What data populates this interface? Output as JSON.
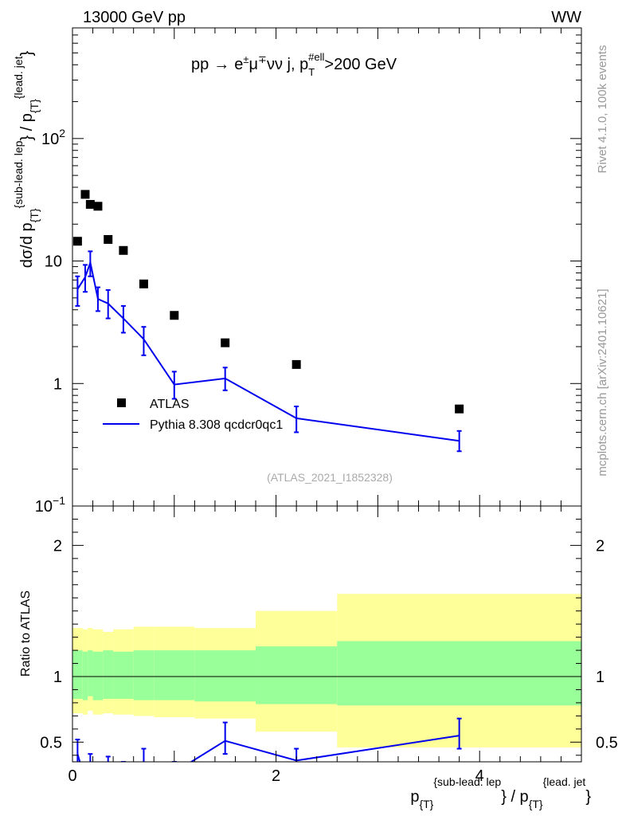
{
  "header": {
    "left": "13000 GeV pp",
    "right": "WW"
  },
  "side": {
    "rivet": "Rivet 4.1.0,  100k events",
    "mcplots": "mcplots.cern.ch [arXiv:2401.10621]"
  },
  "chart_data": [
    {
      "type": "scatter",
      "panel": "main",
      "title": "pp → e±μ∓νν j, p_T^#ell>200 GeV",
      "title_parts": {
        "a": "pp",
        "arrow": "→",
        "b": "e",
        "b1": "±",
        "c": "μ",
        "c1": "∓",
        "d": "νν j, p",
        "sub": "T",
        "sup": "#ell",
        "e": ">200 GeV"
      },
      "ylabel": "dσ/d p_{T}^{sub-lead. lep} / p_{T}^{lead. jet}",
      "ylabel_parts": {
        "a": "dσ/d p",
        "s1": "{T}",
        "p1": "{sub-lead. lep",
        "b": "} / p",
        "s2": "{T}",
        "p2": "{lead. jet",
        "c": "}"
      },
      "yscale": "log",
      "ylim": [
        0.1,
        800
      ],
      "xlim": [
        0,
        5
      ],
      "y_ticklabels": [
        {
          "value": 0.1,
          "base": "10",
          "exp": "−1"
        },
        {
          "value": 1,
          "base": "1",
          "exp": ""
        },
        {
          "value": 10,
          "base": "10",
          "exp": ""
        },
        {
          "value": 100,
          "base": "10",
          "exp": "2"
        }
      ],
      "watermark": "(ATLAS_2021_I1852328)",
      "legend_position": "lower-left",
      "series": [
        {
          "name": "ATLAS",
          "style": "markers",
          "color": "#000000",
          "x": [
            0.05,
            0.125,
            0.175,
            0.25,
            0.35,
            0.5,
            0.7,
            1.0,
            1.5,
            2.2,
            3.8
          ],
          "y": [
            14.5,
            35,
            29,
            28,
            15,
            12.2,
            6.5,
            3.6,
            2.15,
            1.43,
            0.62
          ]
        },
        {
          "name": "Pythia 8.308 qcdcr0qc1",
          "style": "line",
          "color": "#0000ee",
          "x": [
            0.05,
            0.125,
            0.175,
            0.25,
            0.35,
            0.5,
            0.7,
            1.0,
            1.5,
            2.2,
            3.8
          ],
          "y": [
            5.9,
            7.4,
            9.7,
            4.9,
            4.5,
            3.4,
            2.3,
            0.98,
            1.1,
            0.52,
            0.34
          ],
          "ylow": [
            4.3,
            5.6,
            7.5,
            3.9,
            3.4,
            2.6,
            1.7,
            0.75,
            0.88,
            0.4,
            0.28
          ],
          "yhigh": [
            7.5,
            9.3,
            12.0,
            6.1,
            5.8,
            4.3,
            2.9,
            1.25,
            1.35,
            0.65,
            0.41
          ]
        }
      ]
    },
    {
      "type": "area",
      "panel": "ratio",
      "ylabel": "Ratio to ATLAS",
      "xlabel": "p_{T}^{sub-lead. lep} / p_{T}^{lead. jet}",
      "xlabel_parts": {
        "a": "p",
        "s1": "{T}",
        "p1": "{sub-lead. lep",
        "b": "} / p",
        "s2": "{T}",
        "p2": "{lead. jet",
        "c": "}"
      },
      "xlim": [
        0,
        5
      ],
      "ylim": [
        0.35,
        2.3
      ],
      "x_ticklabels": [
        "0",
        "2",
        "4"
      ],
      "x_ticks": [
        0,
        2,
        4
      ],
      "y_ticklabels": [
        "0.5",
        "1",
        "2"
      ],
      "y_ticks": [
        0.5,
        1,
        2
      ],
      "bands": {
        "edges": [
          0,
          0.1,
          0.15,
          0.2,
          0.3,
          0.4,
          0.6,
          0.8,
          1.2,
          1.8,
          2.6,
          5.0
        ],
        "yellow_low": [
          0.72,
          0.71,
          0.74,
          0.71,
          0.72,
          0.71,
          0.7,
          0.69,
          0.68,
          0.58,
          0.46
        ],
        "yellow_high": [
          1.37,
          1.36,
          1.37,
          1.36,
          1.34,
          1.36,
          1.38,
          1.38,
          1.37,
          1.5,
          1.63
        ],
        "green_low": [
          0.83,
          0.82,
          0.85,
          0.82,
          0.83,
          0.83,
          0.82,
          0.82,
          0.81,
          0.79,
          0.78
        ],
        "green_high": [
          1.2,
          1.19,
          1.2,
          1.19,
          1.2,
          1.19,
          1.2,
          1.2,
          1.2,
          1.23,
          1.27
        ],
        "yellow_color": "#ffff99",
        "green_color": "#99ff99"
      },
      "series": [
        {
          "name": "Pythia 8.308 qcdcr0qc1 / ATLAS",
          "color": "#0000ee",
          "x": [
            0.05,
            0.125,
            0.175,
            0.25,
            0.35,
            0.5,
            0.7,
            1.0,
            1.5,
            2.2,
            3.8
          ],
          "y": [
            0.41,
            0.21,
            0.33,
            0.175,
            0.3,
            0.28,
            0.35,
            0.27,
            0.51,
            0.36,
            0.55
          ],
          "ylow": [
            0.3,
            0.16,
            0.26,
            0.14,
            0.23,
            0.21,
            0.26,
            0.21,
            0.41,
            0.28,
            0.45
          ],
          "yhigh": [
            0.52,
            0.27,
            0.41,
            0.22,
            0.39,
            0.35,
            0.45,
            0.35,
            0.65,
            0.45,
            0.68
          ]
        }
      ]
    }
  ]
}
